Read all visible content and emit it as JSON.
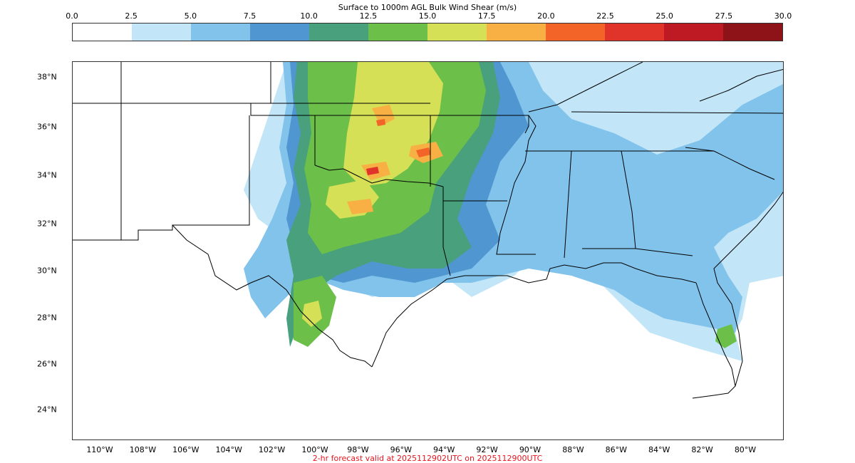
{
  "colorbar": {
    "title": "Surface to 1000m AGL Bulk Wind Shear (m/s)",
    "tick_labels": [
      "0.0",
      "2.5",
      "5.0",
      "7.5",
      "10.0",
      "12.5",
      "15.0",
      "17.5",
      "20.0",
      "22.5",
      "25.0",
      "27.5",
      "30.0"
    ],
    "colors": [
      "#ffffff",
      "#c2e6f8",
      "#82c3ec",
      "#5096d1",
      "#48a07c",
      "#6cc04a",
      "#d5e057",
      "#f8b045",
      "#f36428",
      "#e0332a",
      "#bd1a23",
      "#8e1319"
    ]
  },
  "map": {
    "lat_labels": [
      "38°N",
      "36°N",
      "34°N",
      "32°N",
      "30°N",
      "28°N",
      "26°N",
      "24°N"
    ],
    "lon_labels": [
      "110°W",
      "108°W",
      "106°W",
      "104°W",
      "102°W",
      "100°W",
      "98°W",
      "96°W",
      "94°W",
      "92°W",
      "90°W",
      "88°W",
      "86°W",
      "84°W",
      "82°W",
      "80°W"
    ]
  },
  "footer": {
    "text": "2-hr forecast valid at 2025112902UTC on 2025112900UTC"
  }
}
